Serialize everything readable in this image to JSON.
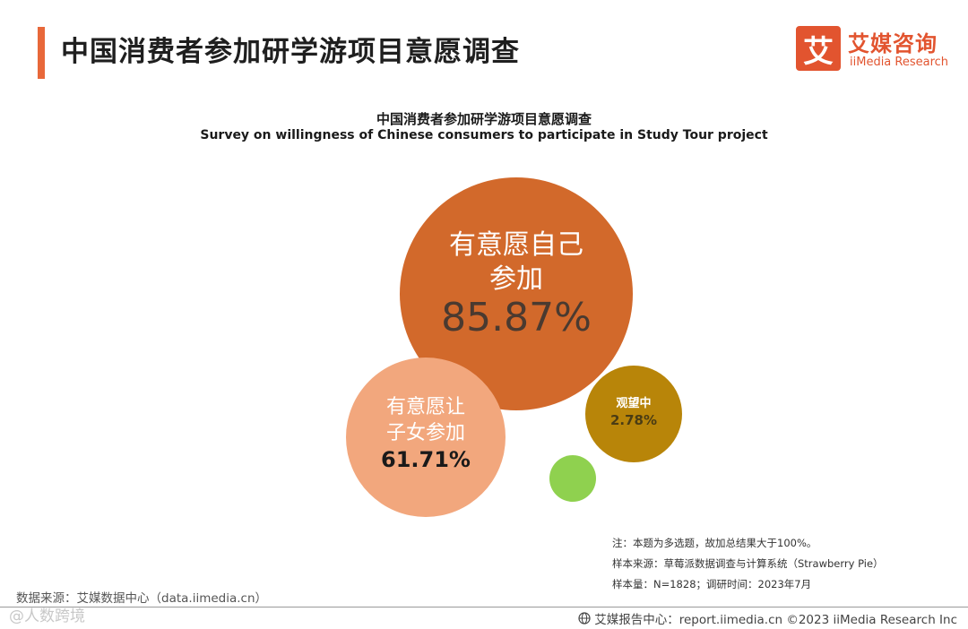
{
  "header": {
    "title": "中国消费者参加研学游项目意愿调查",
    "logo_mark": "艾",
    "logo_cn": "艾媒咨询",
    "logo_en": "iiMedia Research"
  },
  "chart_data": {
    "type": "bubble",
    "title": "中国消费者参加研学游项目意愿调查",
    "subtitle": "Survey on willingness of Chinese consumers to participate in Study Tour project",
    "series": [
      {
        "label_lines": [
          "有意愿自己",
          "参加"
        ],
        "value_text": "85.87%",
        "value": 85.87,
        "color": "#d2692b"
      },
      {
        "label_lines": [
          "有意愿让",
          "子女参加"
        ],
        "value_text": "61.71%",
        "value": 61.71,
        "color": "#f2a77d"
      },
      {
        "label_lines": [
          "观望中"
        ],
        "value_text": "2.78%",
        "value": 2.78,
        "color": "#b88509"
      },
      {
        "label_lines": [],
        "value_text": "",
        "value": null,
        "color": "#8fd14f"
      }
    ]
  },
  "notes": [
    "注：本题为多选题，故加总结果大于100%。",
    "样本来源：草莓派数据调查与计算系统（Strawberry Pie）",
    "样本量：N=1828；调研时间：2023年7月"
  ],
  "source": "数据来源：艾媒数据中心（data.iimedia.cn）",
  "watermark": "@人数跨境",
  "footer": "艾媒报告中心：report.iimedia.cn  ©2023  iiMedia Research  Inc"
}
